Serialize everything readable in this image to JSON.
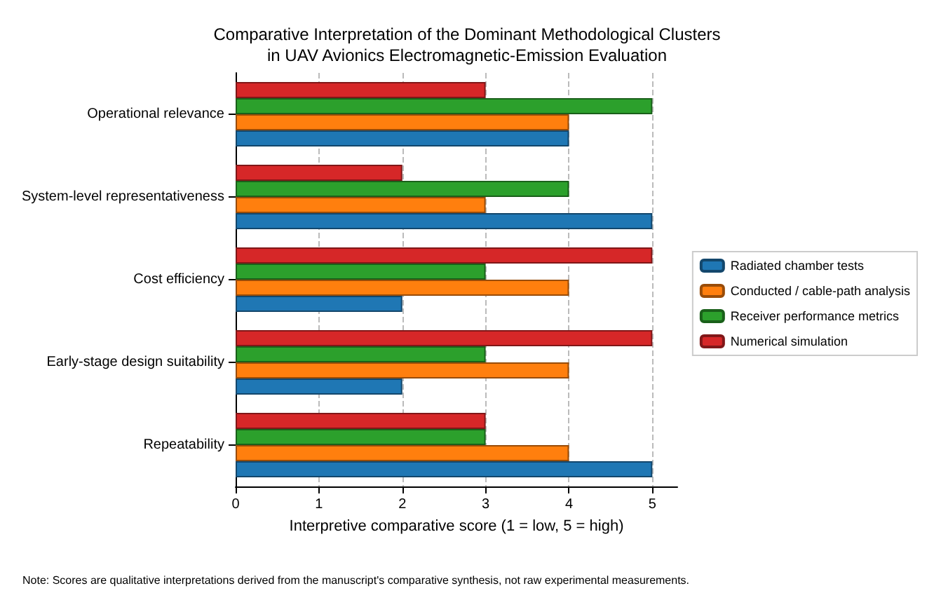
{
  "chart_data": {
    "type": "bar",
    "orientation": "horizontal",
    "title": "Comparative Interpretation of the Dominant Methodological Clusters\nin UAV Avionics Electromagnetic-Emission Evaluation",
    "xlabel": "Interpretive comparative score (1 = low, 5 = high)",
    "categories": [
      "Operational relevance",
      "System-level representativeness",
      "Cost efficiency",
      "Early-stage design suitability",
      "Repeatability"
    ],
    "series": [
      {
        "name": "Radiated chamber tests",
        "color": "#1f77b4",
        "values": [
          4,
          5,
          2,
          2,
          5
        ]
      },
      {
        "name": "Conducted / cable-path analysis",
        "color": "#ff7f0e",
        "values": [
          4,
          3,
          4,
          4,
          4
        ]
      },
      {
        "name": "Receiver performance metrics",
        "color": "#2ca02c",
        "values": [
          5,
          4,
          3,
          3,
          3
        ]
      },
      {
        "name": "Numerical simulation",
        "color": "#d62728",
        "values": [
          3,
          2,
          5,
          5,
          3
        ]
      }
    ],
    "xlim": [
      0,
      5.3
    ],
    "xticks": [
      0,
      1,
      2,
      3,
      4,
      5
    ],
    "grid": "x",
    "legend": "right",
    "annotations": [
      "Note: Scores are qualitative interpretations derived from the manuscript's comparative synthesis, not raw experimental measurements."
    ]
  }
}
